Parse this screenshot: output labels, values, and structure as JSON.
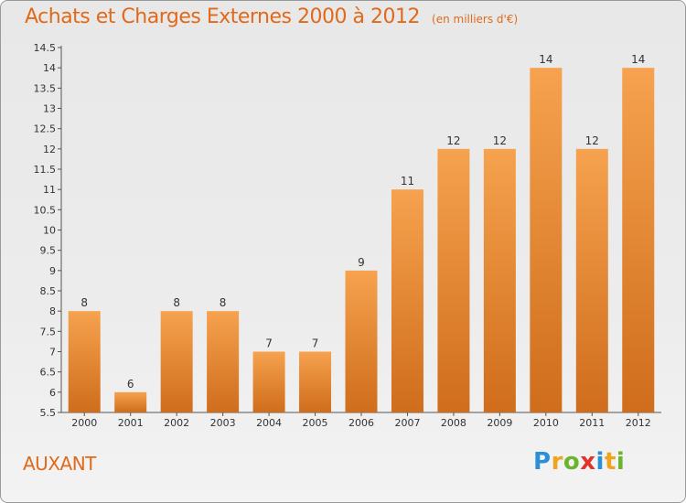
{
  "header": {
    "title": "Achats et Charges Externes 2000 à 2012",
    "subtitle": "(en milliers d'€)"
  },
  "commune": "AUXANT",
  "logo": {
    "text": "Proxiti",
    "letters": [
      {
        "ch": "P",
        "color": "#2a8fd8"
      },
      {
        "ch": "r",
        "color": "#f0a31c"
      },
      {
        "ch": "o",
        "color": "#6cb42c"
      },
      {
        "ch": "x",
        "color": "#e2322a"
      },
      {
        "ch": "i",
        "color": "#2a8fd8"
      },
      {
        "ch": "t",
        "color": "#f0a31c"
      },
      {
        "ch": "i",
        "color": "#6cb42c"
      }
    ]
  },
  "colors": {
    "bar_top": "#f6a24e",
    "bar_bottom": "#cf6d1c",
    "accent": "#e06a1a"
  },
  "chart_data": {
    "type": "bar",
    "categories": [
      "2000",
      "2001",
      "2002",
      "2003",
      "2004",
      "2005",
      "2006",
      "2007",
      "2008",
      "2009",
      "2010",
      "2011",
      "2012"
    ],
    "values": [
      8,
      6,
      8,
      8,
      7,
      7,
      9,
      11,
      12,
      12,
      14,
      12,
      14
    ],
    "data_labels": [
      "8",
      "6",
      "8",
      "8",
      "7",
      "7",
      "9",
      "11",
      "12",
      "12",
      "14",
      "12",
      "14"
    ],
    "ylim": [
      5.5,
      14.5
    ],
    "yticks": [
      5.5,
      6,
      6.5,
      7,
      7.5,
      8,
      8.5,
      9,
      9.5,
      10,
      10.5,
      11,
      11.5,
      12,
      12.5,
      13,
      13.5,
      14,
      14.5
    ],
    "ytick_labels": [
      "5.5",
      "6",
      "6.5",
      "7",
      "7.5",
      "8",
      "8.5",
      "9",
      "9.5",
      "10",
      "10.5",
      "11",
      "11.5",
      "12",
      "12.5",
      "13",
      "13.5",
      "14",
      "14.5"
    ],
    "xlabel": "",
    "ylabel": "",
    "grid": false,
    "legend": "none"
  }
}
